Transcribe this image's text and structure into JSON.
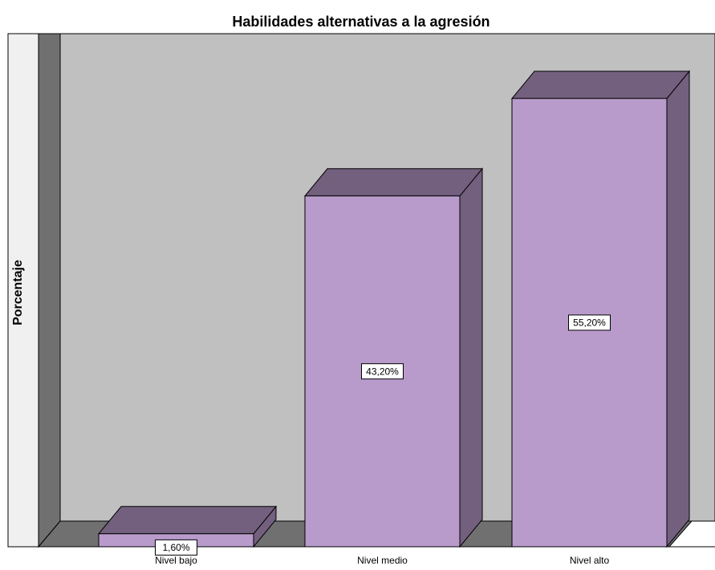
{
  "chart_data": {
    "type": "bar3d",
    "title": "Habilidades alternativas a la agresión",
    "y_label": "Porcentaje",
    "categories": [
      "Nivel bajo",
      "Nivel medio",
      "Nivel alto"
    ],
    "values": [
      1.6,
      43.2,
      55.2
    ],
    "value_labels": [
      "1,60%",
      "43,20%",
      "55,20%"
    ],
    "color": "#b89bcb",
    "side_color": "#735f7e"
  }
}
